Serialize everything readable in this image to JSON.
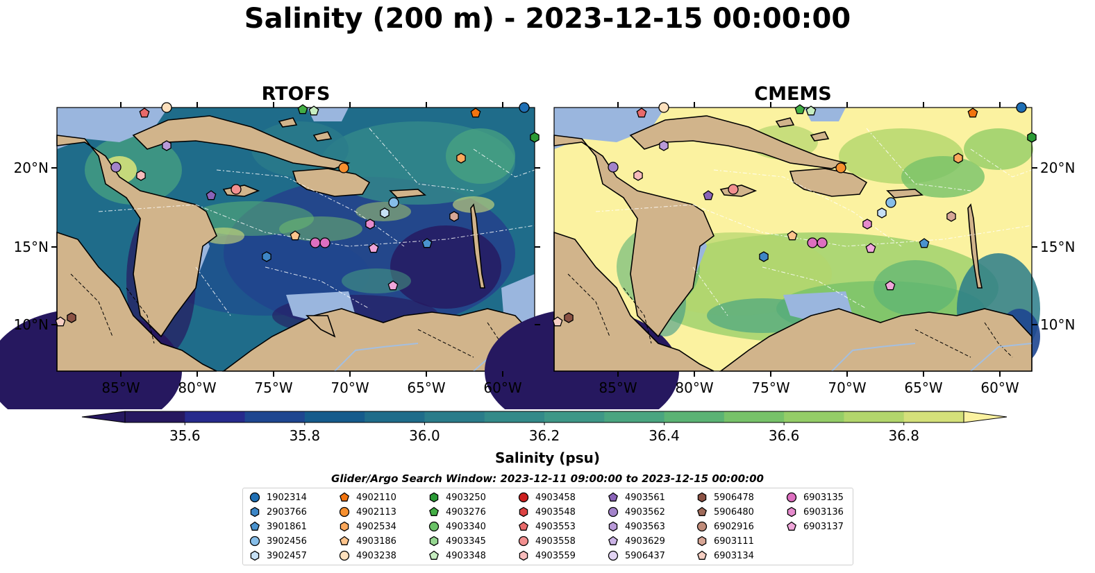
{
  "title": "Salinity (200 m) - 2023-12-15 00:00:00",
  "panels": [
    {
      "title": "RTOFS",
      "style": "rtofs"
    },
    {
      "title": "CMEMS",
      "style": "cmems"
    }
  ],
  "lon_ticks": [
    "85°W",
    "80°W",
    "75°W",
    "70°W",
    "65°W",
    "60°W"
  ],
  "lat_ticks": [
    "20°N",
    "15°N",
    "10°N"
  ],
  "colorbar": {
    "label": "Salinity (psu)",
    "min": 35.5,
    "max": 36.9,
    "ticks": [
      "35.6",
      "35.8",
      "36.0",
      "36.2",
      "36.4",
      "36.6",
      "36.8"
    ],
    "tick_values": [
      35.6,
      35.8,
      36.0,
      36.2,
      36.4,
      36.6,
      36.8
    ],
    "colors": [
      "#26185f",
      "#262a8c",
      "#1e4690",
      "#155b8c",
      "#1f6c8a",
      "#2a7c8a",
      "#338a89",
      "#3e9787",
      "#4aa580",
      "#5bb374",
      "#77c269",
      "#94cd67",
      "#b2d66c",
      "#d4e07a"
    ],
    "extend_low_color": "#26185f",
    "extend_high_color": "#fbf2a0"
  },
  "search_window": "Glider/Argo Search Window: 2023-12-11 09:00:00 to 2023-12-15 00:00:00",
  "legend": [
    {
      "id": "1902314",
      "marker": "circle",
      "color": "#1f6fb4"
    },
    {
      "id": "2903766",
      "marker": "hexagon",
      "color": "#3d86c6"
    },
    {
      "id": "3901861",
      "marker": "pentagon",
      "color": "#4a93cf"
    },
    {
      "id": "3902456",
      "marker": "circle",
      "color": "#86bde8"
    },
    {
      "id": "3902457",
      "marker": "hexagon",
      "color": "#c6e0f5"
    },
    {
      "id": "4902110",
      "marker": "pentagon",
      "color": "#f2740f"
    },
    {
      "id": "4902113",
      "marker": "circle",
      "color": "#f7902f"
    },
    {
      "id": "4902534",
      "marker": "hexagon",
      "color": "#fba85c"
    },
    {
      "id": "4903186",
      "marker": "pentagon",
      "color": "#fdc48c"
    },
    {
      "id": "4903238",
      "marker": "circle",
      "color": "#fde0bd"
    },
    {
      "id": "4903250",
      "marker": "hexagon",
      "color": "#2a9a35"
    },
    {
      "id": "4903276",
      "marker": "pentagon",
      "color": "#43ae45"
    },
    {
      "id": "4903340",
      "marker": "circle",
      "color": "#6ac267"
    },
    {
      "id": "4903345",
      "marker": "hexagon",
      "color": "#95d690"
    },
    {
      "id": "4903348",
      "marker": "pentagon",
      "color": "#c6edc0"
    },
    {
      "id": "4903458",
      "marker": "circle",
      "color": "#cc1f1f"
    },
    {
      "id": "4903548",
      "marker": "hexagon",
      "color": "#dd4343"
    },
    {
      "id": "4903553",
      "marker": "pentagon",
      "color": "#e86a6a"
    },
    {
      "id": "4903558",
      "marker": "circle",
      "color": "#f29090"
    },
    {
      "id": "4903559",
      "marker": "hexagon",
      "color": "#f8bcbc"
    },
    {
      "id": "4903561",
      "marker": "pentagon",
      "color": "#8a63b8"
    },
    {
      "id": "4903562",
      "marker": "circle",
      "color": "#a383ca"
    },
    {
      "id": "4903563",
      "marker": "hexagon",
      "color": "#b99ad8"
    },
    {
      "id": "4903629",
      "marker": "pentagon",
      "color": "#cbb3e6"
    },
    {
      "id": "5906437",
      "marker": "circle",
      "color": "#e2d3f3"
    },
    {
      "id": "5906478",
      "marker": "hexagon",
      "color": "#8b5244"
    },
    {
      "id": "5906480",
      "marker": "pentagon",
      "color": "#a06b5a"
    },
    {
      "id": "6902916",
      "marker": "circle",
      "color": "#c08c7a"
    },
    {
      "id": "6903111",
      "marker": "hexagon",
      "color": "#d7a696"
    },
    {
      "id": "6903134",
      "marker": "pentagon",
      "color": "#f6cfc3"
    },
    {
      "id": "6903135",
      "marker": "circle",
      "color": "#dd6fc0"
    },
    {
      "id": "6903136",
      "marker": "hexagon",
      "color": "#e58bcd"
    },
    {
      "id": "6903137",
      "marker": "pentagon",
      "color": "#f0a6da"
    }
  ]
}
